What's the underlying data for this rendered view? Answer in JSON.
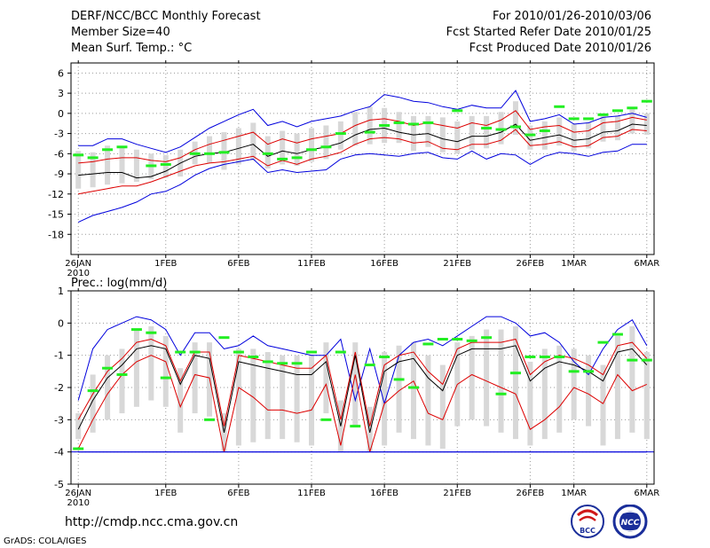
{
  "header": {
    "title": "DERF/NCC/BCC Monthly Forecast",
    "member_size": "Member Size=40",
    "variable": "Mean Surf. Temp.: °C",
    "period": "For 2010/01/26-2010/03/06",
    "start_date": "Fcst Started Refer Date 2010/01/25",
    "produced_date": "Fcst Produced Date 2010/01/26"
  },
  "footer": {
    "url": "http://cmdp.ncc.cma.gov.cn",
    "credit": "GrADS: COLA/IGES",
    "logo_bcc": "BCC",
    "logo_ncc": "NCC"
  },
  "colors": {
    "envelope": "#0000dd",
    "ensemble_range": "#dd0000",
    "ensemble_mean": "#000000",
    "member_spread": "#d8d8d8",
    "observed": "#22ee22",
    "grid": "#999999"
  },
  "chart_data": [
    {
      "type": "line",
      "title": "Mean Surf. Temp.: °C",
      "xlabel": "",
      "ylabel": "°C",
      "x_tick_labels": [
        "26JAN",
        "1FEB",
        "6FEB",
        "11FEB",
        "16FEB",
        "21FEB",
        "26FEB",
        "1MAR",
        "6MAR"
      ],
      "x_tick_days": [
        0,
        6,
        11,
        16,
        21,
        26,
        31,
        34,
        39
      ],
      "x_year_label": "2010",
      "yticks": [
        6,
        3,
        0,
        -3,
        -6,
        -9,
        -12,
        -15,
        -18
      ],
      "ylim": [
        -21,
        7.5
      ],
      "x_day_range": [
        -0.5,
        39.5
      ],
      "series": [
        {
          "name": "max",
          "color": "#0000dd",
          "values": [
            -4.8,
            -4.8,
            -3.8,
            -3.8,
            -4.6,
            -5.2,
            -5.8,
            -5.0,
            -3.6,
            -2.2,
            -1.2,
            -0.2,
            0.6,
            -1.8,
            -1.2,
            -2.0,
            -1.2,
            -0.8,
            -0.4,
            0.4,
            1.0,
            2.8,
            2.4,
            1.8,
            1.6,
            1.0,
            0.6,
            1.2,
            0.8,
            0.8,
            3.4,
            -1.2,
            -0.8,
            -0.2,
            -1.6,
            -1.4,
            -0.6,
            -0.4,
            0.0,
            -0.6
          ]
        },
        {
          "name": "upper",
          "color": "#dd0000",
          "values": [
            -7.4,
            -7.2,
            -6.8,
            -6.6,
            -6.6,
            -7.0,
            -7.2,
            -6.6,
            -5.4,
            -4.6,
            -4.0,
            -3.4,
            -2.8,
            -4.6,
            -3.8,
            -4.4,
            -3.8,
            -3.4,
            -3.0,
            -1.8,
            -1.0,
            -0.8,
            -1.2,
            -1.8,
            -1.4,
            -1.8,
            -2.2,
            -1.4,
            -1.8,
            -1.0,
            0.4,
            -2.4,
            -2.0,
            -1.8,
            -2.8,
            -2.6,
            -1.4,
            -1.2,
            -0.6,
            -1.0
          ]
        },
        {
          "name": "mean",
          "color": "#000000",
          "values": [
            -9.2,
            -9.0,
            -8.8,
            -8.8,
            -9.6,
            -9.4,
            -8.6,
            -7.4,
            -6.4,
            -6.0,
            -5.8,
            -5.2,
            -4.6,
            -6.4,
            -5.6,
            -6.0,
            -5.4,
            -5.0,
            -4.4,
            -3.2,
            -2.4,
            -2.2,
            -2.8,
            -3.2,
            -3.0,
            -3.8,
            -4.2,
            -3.4,
            -3.4,
            -2.8,
            -1.6,
            -4.0,
            -3.6,
            -3.2,
            -4.0,
            -3.8,
            -2.8,
            -2.6,
            -1.6,
            -1.8
          ]
        },
        {
          "name": "lower",
          "color": "#dd0000",
          "values": [
            -12.0,
            -11.6,
            -11.2,
            -10.8,
            -10.8,
            -10.2,
            -9.4,
            -8.6,
            -7.8,
            -7.4,
            -7.2,
            -6.8,
            -6.4,
            -7.8,
            -7.0,
            -7.6,
            -6.8,
            -6.4,
            -5.8,
            -4.6,
            -3.8,
            -3.6,
            -3.8,
            -4.4,
            -4.2,
            -5.2,
            -5.4,
            -4.6,
            -4.6,
            -4.0,
            -2.4,
            -4.8,
            -4.6,
            -4.2,
            -5.0,
            -4.8,
            -3.6,
            -3.4,
            -2.4,
            -2.6
          ]
        },
        {
          "name": "min",
          "color": "#0000dd",
          "values": [
            -16.2,
            -15.2,
            -14.6,
            -14.0,
            -13.2,
            -12.0,
            -11.6,
            -10.6,
            -9.2,
            -8.2,
            -7.6,
            -7.2,
            -6.8,
            -8.8,
            -8.4,
            -8.8,
            -8.6,
            -8.4,
            -6.8,
            -6.2,
            -6.0,
            -6.2,
            -6.4,
            -6.0,
            -5.8,
            -6.6,
            -6.8,
            -5.6,
            -6.8,
            -6.0,
            -6.2,
            -7.6,
            -6.4,
            -5.8,
            -6.0,
            -6.4,
            -5.8,
            -5.6,
            -4.6,
            -4.6
          ]
        }
      ],
      "spread_bars": {
        "low": [
          -11.2,
          -11.0,
          -10.6,
          -10.4,
          -10.2,
          -9.8,
          -9.6,
          -9.4,
          -7.6,
          -7.4,
          -8.4,
          -7.6,
          -7.0,
          -8.2,
          -7.6,
          -7.8,
          -7.2,
          -6.8,
          -5.4,
          -4.8,
          -4.6,
          -4.4,
          -4.4,
          -5.6,
          -5.0,
          -5.8,
          -6.0,
          -5.4,
          -5.2,
          -4.6,
          -3.2,
          -5.4,
          -5.4,
          -4.8,
          -5.6,
          -5.2,
          -4.2,
          -4.0,
          -3.0,
          -3.2
        ],
        "high": [
          -5.6,
          -5.8,
          -4.8,
          -5.0,
          -5.4,
          -6.0,
          -6.2,
          -5.4,
          -4.2,
          -3.4,
          -2.8,
          -2.2,
          -1.4,
          -3.4,
          -2.6,
          -3.0,
          -2.2,
          -1.8,
          -1.2,
          0.2,
          1.0,
          0.8,
          0.2,
          -0.4,
          -0.4,
          -0.6,
          -1.2,
          -0.4,
          -0.4,
          0.2,
          1.8,
          -1.8,
          -1.2,
          -0.6,
          -1.6,
          -1.4,
          -0.4,
          -0.4,
          0.6,
          0.0
        ]
      },
      "observed": {
        "name": "observed",
        "color": "#22ee22",
        "days": [
          0,
          1,
          2,
          3,
          5,
          6,
          8,
          9,
          10,
          13,
          14,
          15,
          16,
          17,
          18,
          20,
          21,
          22,
          23,
          24,
          26,
          28,
          29,
          30,
          31,
          32,
          33,
          34,
          35,
          36,
          37,
          38,
          39
        ],
        "values": [
          -6.2,
          -6.6,
          -5.4,
          -5.0,
          -7.8,
          -7.6,
          -6.0,
          -6.0,
          -5.8,
          -6.0,
          -6.8,
          -6.6,
          -5.4,
          -5.0,
          -3.0,
          -2.8,
          -1.8,
          -1.4,
          -1.6,
          -1.4,
          0.4,
          -2.2,
          -2.4,
          -2.0,
          -3.2,
          -2.6,
          1.0,
          -0.8,
          -0.8,
          -0.2,
          0.4,
          0.8,
          1.8
        ]
      }
    },
    {
      "type": "line",
      "title": "Prec.: log(mm/d)",
      "xlabel": "",
      "ylabel": "log(mm/d)",
      "x_tick_labels": [
        "26JAN",
        "1FEB",
        "6FEB",
        "11FEB",
        "16FEB",
        "21FEB",
        "26FEB",
        "1MAR",
        "6MAR"
      ],
      "x_tick_days": [
        0,
        6,
        11,
        16,
        21,
        26,
        31,
        34,
        39
      ],
      "x_year_label": "2010",
      "yticks": [
        1,
        0,
        -1,
        -2,
        -3,
        -4,
        -5
      ],
      "ylim": [
        -5,
        1
      ],
      "x_day_range": [
        -0.5,
        39.5
      ],
      "baseline": -4,
      "series": [
        {
          "name": "max",
          "color": "#0000dd",
          "values": [
            -2.4,
            -0.8,
            -0.2,
            0.0,
            0.2,
            0.1,
            -0.2,
            -1.0,
            -0.3,
            -0.3,
            -0.8,
            -0.7,
            -0.4,
            -0.7,
            -0.8,
            -0.9,
            -1.0,
            -1.0,
            -0.5,
            -2.4,
            -0.8,
            -2.5,
            -1.0,
            -0.6,
            -0.5,
            -0.7,
            -0.4,
            -0.1,
            0.2,
            0.2,
            0.0,
            -0.4,
            -0.3,
            -0.6,
            -1.2,
            -1.6,
            -0.8,
            -0.2,
            0.1,
            -0.7
          ]
        },
        {
          "name": "upper",
          "color": "#dd0000",
          "values": [
            -3.0,
            -2.2,
            -1.5,
            -1.1,
            -0.6,
            -0.5,
            -0.7,
            -1.8,
            -0.9,
            -0.9,
            -3.2,
            -1.0,
            -1.1,
            -1.2,
            -1.3,
            -1.4,
            -1.4,
            -1.0,
            -3.0,
            -0.9,
            -3.2,
            -1.3,
            -1.0,
            -0.9,
            -1.5,
            -1.9,
            -0.8,
            -0.6,
            -0.6,
            -0.6,
            -0.5,
            -1.6,
            -1.2,
            -1.0,
            -1.1,
            -1.3,
            -1.6,
            -0.7,
            -0.6,
            -1.1
          ]
        },
        {
          "name": "mean",
          "color": "#000000",
          "values": [
            -3.3,
            -2.4,
            -1.7,
            -1.3,
            -0.8,
            -0.7,
            -0.8,
            -1.9,
            -1.0,
            -1.1,
            -3.4,
            -1.2,
            -1.3,
            -1.4,
            -1.5,
            -1.6,
            -1.6,
            -1.2,
            -3.2,
            -1.0,
            -3.4,
            -1.5,
            -1.2,
            -1.1,
            -1.7,
            -2.1,
            -1.0,
            -0.8,
            -0.8,
            -0.8,
            -0.7,
            -1.8,
            -1.4,
            -1.2,
            -1.3,
            -1.5,
            -1.8,
            -0.9,
            -0.8,
            -1.3
          ]
        },
        {
          "name": "lower",
          "color": "#dd0000",
          "values": [
            -3.9,
            -3.0,
            -2.2,
            -1.6,
            -1.2,
            -1.0,
            -1.2,
            -2.6,
            -1.6,
            -1.7,
            -4.0,
            -2.0,
            -2.3,
            -2.7,
            -2.7,
            -2.8,
            -2.7,
            -1.9,
            -3.8,
            -1.6,
            -4.0,
            -2.5,
            -2.1,
            -1.8,
            -2.8,
            -3.0,
            -1.9,
            -1.6,
            -1.8,
            -2.0,
            -2.2,
            -3.3,
            -3.0,
            -2.6,
            -2.0,
            -2.2,
            -2.5,
            -1.6,
            -2.1,
            -1.9
          ]
        },
        {
          "name": "min",
          "color": "#0000dd",
          "values": [
            -4.0,
            -4.0,
            -4.0,
            -4.0,
            -4.0,
            -4.0,
            -4.0,
            -4.0,
            -4.0,
            -4.0,
            -4.0,
            -4.0,
            -4.0,
            -4.0,
            -4.0,
            -4.0,
            -4.0,
            -4.0,
            -4.0,
            -4.0,
            -4.0,
            -4.0,
            -4.0,
            -4.0,
            -4.0,
            -4.0,
            -4.0,
            -4.0,
            -4.0,
            -4.0,
            -4.0,
            -4.0,
            -4.0,
            -4.0,
            -4.0,
            -4.0,
            -4.0,
            -4.0,
            -4.0,
            -4.0
          ]
        }
      ],
      "spread_bars": {
        "low": [
          -3.6,
          -3.4,
          -3.0,
          -2.8,
          -2.6,
          -2.4,
          -2.6,
          -3.4,
          -2.8,
          -2.9,
          -4.0,
          -3.8,
          -3.7,
          -3.6,
          -3.6,
          -3.7,
          -3.8,
          -2.8,
          -4.0,
          -3.2,
          -4.0,
          -3.8,
          -3.4,
          -3.6,
          -3.8,
          -3.9,
          -3.2,
          -3.0,
          -3.2,
          -3.4,
          -3.6,
          -3.8,
          -3.6,
          -3.4,
          -3.0,
          -3.2,
          -3.8,
          -3.6,
          -3.4,
          -3.6
        ],
        "high": [
          -2.8,
          -1.6,
          -1.0,
          -0.8,
          -0.2,
          -0.1,
          -0.4,
          -1.4,
          -0.6,
          -0.6,
          -2.8,
          -0.8,
          -0.8,
          -0.9,
          -1.0,
          -1.0,
          -1.0,
          -0.6,
          -2.4,
          -0.6,
          -2.6,
          -0.9,
          -0.7,
          -0.6,
          -1.0,
          -1.3,
          -0.6,
          -0.4,
          -0.2,
          -0.2,
          -0.1,
          -1.2,
          -0.8,
          -0.7,
          -0.8,
          -1.0,
          -1.3,
          -0.4,
          -0.1,
          -0.9
        ]
      },
      "observed": {
        "name": "observed",
        "color": "#22ee22",
        "days": [
          0,
          1,
          2,
          3,
          4,
          5,
          6,
          7,
          8,
          9,
          10,
          11,
          12,
          13,
          14,
          15,
          16,
          17,
          18,
          19,
          20,
          21,
          22,
          23,
          24,
          25,
          26,
          27,
          28,
          29,
          30,
          31,
          32,
          33,
          34,
          35,
          36,
          37,
          38,
          39
        ],
        "values": [
          -3.9,
          -2.1,
          -1.4,
          -1.6,
          -0.2,
          -0.3,
          -1.7,
          -0.9,
          -0.9,
          -3.0,
          -0.45,
          -0.9,
          -1.05,
          -1.2,
          -1.25,
          -1.25,
          -0.9,
          -3.0,
          -0.9,
          -3.2,
          -1.3,
          -1.05,
          -1.75,
          -2.0,
          -0.65,
          -0.5,
          -0.5,
          -0.55,
          -0.45,
          -2.2,
          -1.55,
          -1.05,
          -1.05,
          -1.05,
          -1.5,
          -1.5,
          -0.6,
          -0.35,
          -1.15,
          -1.15
        ]
      }
    }
  ]
}
